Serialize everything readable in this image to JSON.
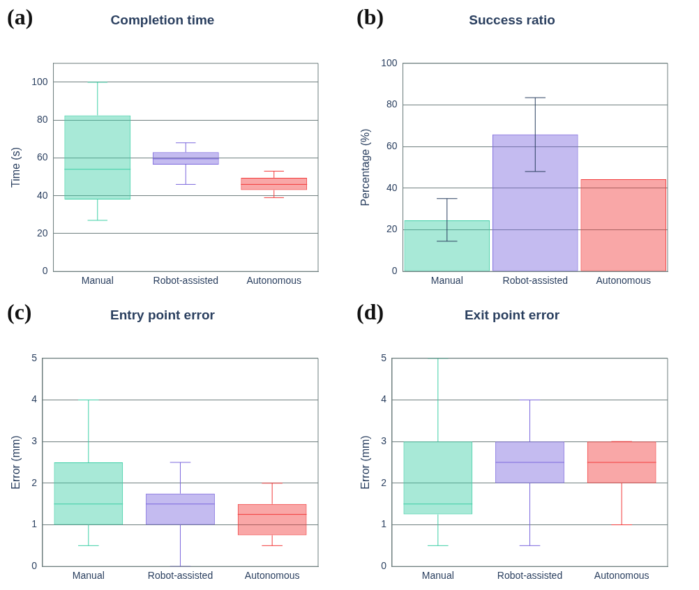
{
  "chart_data": [
    {
      "type": "box",
      "title": "Completion time",
      "ylabel": "Time (s)",
      "categories": [
        "Manual",
        "Robot-assisted",
        "Autonomous"
      ],
      "colors": [
        "#3ecfa6",
        "#7c68dd",
        "#f23c3c"
      ],
      "ylim": [
        0,
        110
      ],
      "yticks": [
        0,
        20,
        40,
        60,
        80,
        100
      ],
      "grid": "y",
      "annotations": [
        "(a)"
      ],
      "boxes": [
        {
          "low": 27,
          "q1": 38,
          "median": 54,
          "q3": 82.5,
          "high": 100
        },
        {
          "low": 46,
          "q1": 56.5,
          "median": 59.5,
          "q3": 63,
          "high": 68
        },
        {
          "low": 39,
          "q1": 43,
          "median": 46,
          "q3": 49.5,
          "high": 53
        }
      ]
    },
    {
      "type": "bar",
      "title": "Success ratio",
      "ylabel": "Percentage (%)",
      "categories": [
        "Manual",
        "Robot-assisted",
        "Autonomous"
      ],
      "colors": [
        "#3ecfa6",
        "#7c68dd",
        "#f23c3c"
      ],
      "ylim": [
        0,
        100
      ],
      "yticks": [
        0,
        20,
        40,
        60,
        80,
        100
      ],
      "grid": "y",
      "annotations": [
        "(b)"
      ],
      "values": [
        24.5,
        65.8,
        44.3
      ],
      "errors": [
        [
          14.5,
          35
        ],
        [
          48,
          83.5
        ],
        null
      ]
    },
    {
      "type": "box",
      "title": "Entry point error",
      "ylabel": "Error (mm)",
      "categories": [
        "Manual",
        "Robot-assisted",
        "Autonomous"
      ],
      "colors": [
        "#3ecfa6",
        "#7c68dd",
        "#f23c3c"
      ],
      "ylim": [
        0,
        5
      ],
      "yticks": [
        0,
        1,
        2,
        3,
        4,
        5
      ],
      "grid": "y",
      "annotations": [
        "(c)"
      ],
      "boxes": [
        {
          "low": 0.5,
          "q1": 1,
          "median": 1.5,
          "q3": 2.5,
          "high": 4
        },
        {
          "low": 0,
          "q1": 1,
          "median": 1.5,
          "q3": 1.75,
          "high": 2.5
        },
        {
          "low": 0.5,
          "q1": 0.75,
          "median": 1.25,
          "q3": 1.5,
          "high": 2
        }
      ]
    },
    {
      "type": "box",
      "title": "Exit point error",
      "ylabel": "Error (mm)",
      "categories": [
        "Manual",
        "Robot-assisted",
        "Autonomous"
      ],
      "colors": [
        "#3ecfa6",
        "#7c68dd",
        "#f23c3c"
      ],
      "ylim": [
        0,
        5
      ],
      "yticks": [
        0,
        1,
        2,
        3,
        4,
        5
      ],
      "grid": "y",
      "annotations": [
        "(d)"
      ],
      "boxes": [
        {
          "low": 0.5,
          "q1": 1.25,
          "median": 1.5,
          "q3": 3,
          "high": 5
        },
        {
          "low": 0.5,
          "q1": 2,
          "median": 2.5,
          "q3": 3,
          "high": 4
        },
        {
          "low": 1,
          "q1": 2,
          "median": 2.5,
          "q3": 3,
          "high": 3
        }
      ]
    }
  ]
}
